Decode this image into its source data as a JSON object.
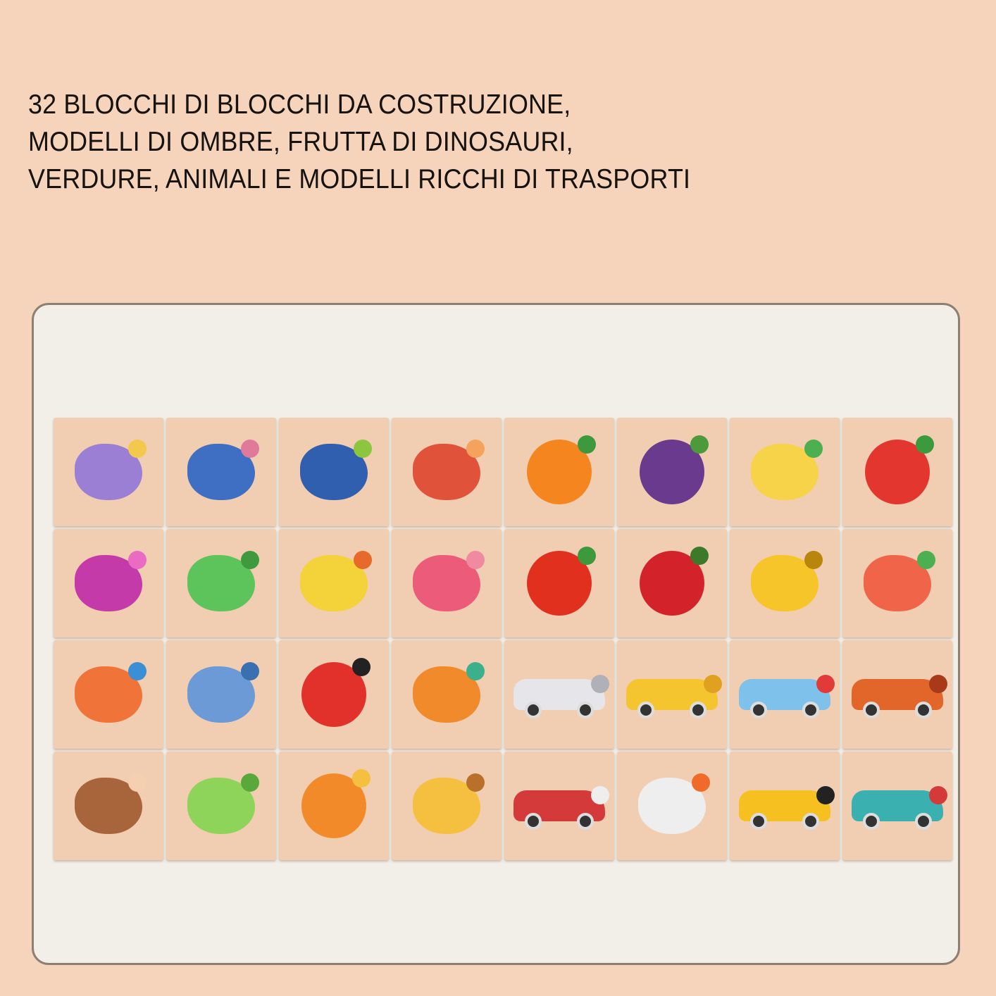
{
  "headline": {
    "lines": [
      "32 BLOCCHI DI BLOCCHI DA COSTRUZIONE,",
      "MODELLI DI OMBRE, FRUTTA DI DINOSAURI,",
      "VERDURE, ANIMALI E MODELLI RICCHI DI TRASPORTI"
    ]
  },
  "tiles": [
    {
      "icon": "triceratops-icon",
      "shape": "blob",
      "color": "#9b7fd4",
      "accent": "#f2c94c"
    },
    {
      "icon": "blue-dinosaur-icon",
      "shape": "blob",
      "color": "#3f6fc2",
      "accent": "#e07a9a"
    },
    {
      "icon": "blue-t-rex-icon",
      "shape": "blob",
      "color": "#2f5fae",
      "accent": "#8cc63f"
    },
    {
      "icon": "red-dinosaur-icon",
      "shape": "blob",
      "color": "#e0533a",
      "accent": "#f5a25d"
    },
    {
      "icon": "orange-icon",
      "shape": "round",
      "color": "#f5861f",
      "accent": "#3c9a3c"
    },
    {
      "icon": "grapes-icon",
      "shape": "round",
      "color": "#6a3a8e",
      "accent": "#4c9a3a"
    },
    {
      "icon": "pineapple-icon",
      "shape": "blob",
      "color": "#f7d34a",
      "accent": "#4caf50"
    },
    {
      "icon": "strawberry-icon",
      "shape": "round",
      "color": "#e2362e",
      "accent": "#3c9a3c"
    },
    {
      "icon": "brontosaurus-icon",
      "shape": "blob",
      "color": "#c43aa8",
      "accent": "#e96bc4"
    },
    {
      "icon": "pterodactyl-icon",
      "shape": "blob",
      "color": "#5cc45a",
      "accent": "#3e9a3c"
    },
    {
      "icon": "yellow-dinosaur-icon",
      "shape": "blob",
      "color": "#f3d23a",
      "accent": "#e86a2a"
    },
    {
      "icon": "pink-dinosaur-icon",
      "shape": "blob",
      "color": "#ec5b7a",
      "accent": "#f08aa0"
    },
    {
      "icon": "tomato-icon",
      "shape": "round",
      "color": "#e2301f",
      "accent": "#3c9a3c"
    },
    {
      "icon": "cherries-icon",
      "shape": "round",
      "color": "#d4222a",
      "accent": "#3c7a2a"
    },
    {
      "icon": "banana-icon",
      "shape": "blob",
      "color": "#f5c52a",
      "accent": "#b8860b"
    },
    {
      "icon": "carrot-icon",
      "shape": "blob",
      "color": "#f0644a",
      "accent": "#4caf50"
    },
    {
      "icon": "owl-icon",
      "shape": "blob",
      "color": "#f0743a",
      "accent": "#3b8fd4"
    },
    {
      "icon": "elephant-icon",
      "shape": "blob",
      "color": "#6c9ad6",
      "accent": "#3a6fb0"
    },
    {
      "icon": "ladybug-icon",
      "shape": "round",
      "color": "#e2302a",
      "accent": "#222222"
    },
    {
      "icon": "fox-icon",
      "shape": "blob",
      "color": "#f08a2a",
      "accent": "#3cb08a"
    },
    {
      "icon": "suv-icon",
      "shape": "car",
      "color": "#e6e6ea",
      "accent": "#b0b0b8"
    },
    {
      "icon": "yellow-car-icon",
      "shape": "car",
      "color": "#f5c530",
      "accent": "#e0a020"
    },
    {
      "icon": "airplane-icon",
      "shape": "car",
      "color": "#7ec2ec",
      "accent": "#e23a3a"
    },
    {
      "icon": "orange-sports-car-icon",
      "shape": "car",
      "color": "#e2652a",
      "accent": "#a83a1a"
    },
    {
      "icon": "monkey-icon",
      "shape": "blob",
      "color": "#a8643a",
      "accent": "#f5d0b0"
    },
    {
      "icon": "frog-icon",
      "shape": "blob",
      "color": "#8fd45a",
      "accent": "#5aa83a"
    },
    {
      "icon": "lion-icon",
      "shape": "round",
      "color": "#f28a2a",
      "accent": "#f5c040"
    },
    {
      "icon": "giraffe-icon",
      "shape": "blob",
      "color": "#f5c040",
      "accent": "#b8702a"
    },
    {
      "icon": "red-pickup-truck-icon",
      "shape": "car",
      "color": "#d43a3a",
      "accent": "#eeeeee"
    },
    {
      "icon": "rocket-icon",
      "shape": "blob",
      "color": "#eeeeee",
      "accent": "#f06a2a"
    },
    {
      "icon": "taxi-icon",
      "shape": "car",
      "color": "#f5c020",
      "accent": "#222222"
    },
    {
      "icon": "boat-icon",
      "shape": "car",
      "color": "#3ab0b0",
      "accent": "#d43a3a"
    }
  ],
  "colors": {
    "background": "#f6d4bc",
    "photo_background": "#f2eee8",
    "photo_border": "#8d7f72",
    "tile": "#f1cdb1",
    "text": "#151210"
  }
}
